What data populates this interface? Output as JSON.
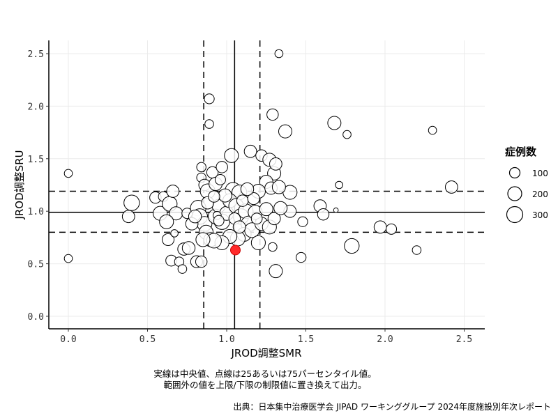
{
  "chart_data": {
    "type": "scatter",
    "title": "",
    "xlabel": "JROD調整SMR",
    "ylabel": "JROD調整SRU",
    "xlim": [
      -0.12,
      2.62
    ],
    "ylim": [
      -0.12,
      2.62
    ],
    "x_ticks": [
      "0.0",
      "0.5",
      "1.0",
      "1.5",
      "2.0",
      "2.5"
    ],
    "y_ticks": [
      "0.0",
      "0.5",
      "1.0",
      "1.5",
      "2.0",
      "2.5"
    ],
    "grid": true,
    "reference_lines": {
      "x_median": 1.05,
      "x_q25": 0.855,
      "x_q75": 1.21,
      "y_median": 0.99,
      "y_q25": 0.8,
      "y_q75": 1.19
    },
    "size_legend": {
      "title": "症例数",
      "entries": [
        {
          "label": "100",
          "value": 100
        },
        {
          "label": "200",
          "value": 200
        },
        {
          "label": "300",
          "value": 300
        }
      ],
      "position": "right"
    },
    "highlight": {
      "x": 1.055,
      "y": 0.63,
      "color": "#ff2a2a"
    },
    "points": [
      [
        0.0,
        1.36,
        60
      ],
      [
        0.0,
        0.55,
        60
      ],
      [
        1.33,
        2.5,
        60
      ],
      [
        0.89,
        2.07,
        90
      ],
      [
        0.89,
        1.83,
        70
      ],
      [
        1.29,
        1.92,
        120
      ],
      [
        1.37,
        1.76,
        160
      ],
      [
        1.68,
        1.84,
        160
      ],
      [
        1.76,
        1.73,
        60
      ],
      [
        2.3,
        1.77,
        60
      ],
      [
        1.71,
        1.25,
        50
      ],
      [
        2.42,
        1.23,
        140
      ],
      [
        1.69,
        1.01,
        20
      ],
      [
        1.59,
        1.05,
        140
      ],
      [
        1.61,
        0.97,
        120
      ],
      [
        1.48,
        0.9,
        90
      ],
      [
        1.97,
        0.85,
        140
      ],
      [
        2.04,
        0.83,
        100
      ],
      [
        2.2,
        0.63,
        70
      ],
      [
        1.79,
        0.67,
        200
      ],
      [
        1.47,
        0.56,
        90
      ],
      [
        1.31,
        0.43,
        160
      ],
      [
        1.29,
        0.66,
        70
      ],
      [
        1.4,
        1.0,
        140
      ],
      [
        1.4,
        1.18,
        180
      ],
      [
        0.4,
        1.08,
        220
      ],
      [
        0.38,
        0.95,
        140
      ],
      [
        0.55,
        1.13,
        120
      ],
      [
        0.6,
        1.14,
        90
      ],
      [
        0.58,
        0.98,
        180
      ],
      [
        0.64,
        1.07,
        200
      ],
      [
        0.66,
        1.19,
        140
      ],
      [
        0.68,
        0.98,
        160
      ],
      [
        0.62,
        0.9,
        180
      ],
      [
        0.63,
        0.73,
        130
      ],
      [
        0.67,
        0.79,
        50
      ],
      [
        0.65,
        0.53,
        110
      ],
      [
        0.7,
        0.52,
        80
      ],
      [
        0.72,
        0.45,
        70
      ],
      [
        0.73,
        0.64,
        140
      ],
      [
        0.76,
        0.65,
        150
      ],
      [
        0.81,
        0.52,
        130
      ],
      [
        0.75,
        0.98,
        100
      ],
      [
        0.84,
        1.42,
        80
      ],
      [
        0.84,
        1.32,
        80
      ],
      [
        0.86,
        1.25,
        120
      ],
      [
        0.88,
        1.19,
        200
      ],
      [
        0.91,
        1.37,
        120
      ],
      [
        0.93,
        1.26,
        160
      ],
      [
        0.97,
        1.42,
        120
      ],
      [
        0.96,
        1.3,
        100
      ],
      [
        1.03,
        1.53,
        180
      ],
      [
        1.04,
        1.2,
        220
      ],
      [
        1.08,
        1.18,
        200
      ],
      [
        1.15,
        1.57,
        140
      ],
      [
        1.22,
        1.53,
        120
      ],
      [
        1.27,
        1.49,
        160
      ],
      [
        1.3,
        1.36,
        160
      ],
      [
        1.25,
        1.28,
        160
      ],
      [
        1.2,
        1.19,
        180
      ],
      [
        1.28,
        1.22,
        140
      ],
      [
        1.33,
        1.23,
        160
      ],
      [
        1.31,
        1.45,
        140
      ],
      [
        0.82,
        1.03,
        220
      ],
      [
        0.83,
        0.95,
        220
      ],
      [
        0.86,
        0.88,
        200
      ],
      [
        0.87,
        0.8,
        180
      ],
      [
        0.9,
        0.73,
        180
      ],
      [
        0.93,
        0.95,
        200
      ],
      [
        0.95,
        1.05,
        160
      ],
      [
        0.97,
        0.9,
        220
      ],
      [
        1.0,
        0.98,
        180
      ],
      [
        1.02,
        1.1,
        180
      ],
      [
        1.06,
        1.05,
        200
      ],
      [
        1.09,
        0.95,
        220
      ],
      [
        1.12,
        1.0,
        200
      ],
      [
        1.14,
        0.88,
        220
      ],
      [
        1.11,
        0.78,
        180
      ],
      [
        1.07,
        0.74,
        200
      ],
      [
        1.02,
        0.76,
        180
      ],
      [
        0.97,
        0.7,
        180
      ],
      [
        0.92,
        0.72,
        200
      ],
      [
        1.16,
        0.82,
        200
      ],
      [
        1.2,
        0.7,
        180
      ],
      [
        1.22,
        0.88,
        160
      ],
      [
        1.18,
        0.99,
        180
      ],
      [
        1.25,
        1.02,
        160
      ],
      [
        1.27,
        0.85,
        180
      ],
      [
        1.3,
        0.93,
        140
      ],
      [
        1.34,
        1.03,
        160
      ],
      [
        0.94,
        0.96,
        60
      ],
      [
        0.95,
        0.91,
        100
      ],
      [
        1.05,
        0.93,
        120
      ],
      [
        1.1,
        1.1,
        120
      ],
      [
        0.99,
        1.15,
        160
      ],
      [
        0.85,
        0.73,
        180
      ],
      [
        0.78,
        0.88,
        140
      ],
      [
        0.8,
        0.95,
        150
      ],
      [
        1.17,
        1.12,
        130
      ],
      [
        1.13,
        1.21,
        150
      ],
      [
        0.84,
        0.52,
        120
      ],
      [
        1.19,
        0.93,
        110
      ],
      [
        1.08,
        0.85,
        140
      ],
      [
        0.88,
        1.08,
        140
      ],
      [
        0.92,
        1.14,
        120
      ]
    ]
  },
  "legend": {
    "title": "症例数",
    "items": [
      {
        "label": "100"
      },
      {
        "label": "200"
      },
      {
        "label": "300"
      }
    ]
  },
  "notes": {
    "line1": "実線は中央値、点線は25あるいは75パーセンタイル値。",
    "line2": "範囲外の値を上限/下限の制限値に置き換えて出力。"
  },
  "source": "出典：日本集中治療医学会 JIPAD ワーキンググループ 2024年度施設別年次レポート",
  "colors": {
    "point_fill": "#ffffff",
    "point_stroke": "#000000",
    "highlight": "#ff2a2a",
    "grid": "#ebebeb"
  }
}
